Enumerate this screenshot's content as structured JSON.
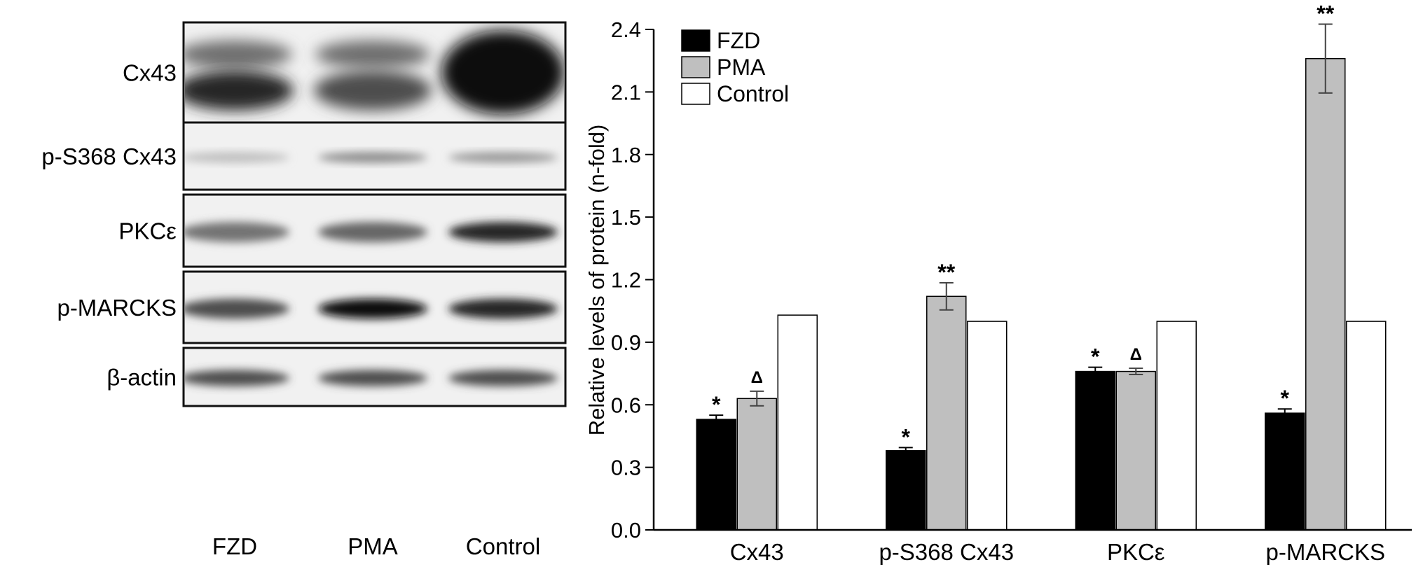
{
  "blot": {
    "rows": [
      {
        "label": "Cx43",
        "kind": "cx43",
        "intensity": [
          0.85,
          0.7,
          0.95
        ]
      },
      {
        "label": "p-S368 Cx43",
        "kind": "thin",
        "intensity": [
          0.25,
          0.45,
          0.4
        ]
      },
      {
        "label": "PKCε",
        "kind": "band",
        "intensity": [
          0.55,
          0.6,
          0.85
        ]
      },
      {
        "label": "p-MARCKS",
        "kind": "band",
        "intensity": [
          0.7,
          0.95,
          0.85
        ]
      },
      {
        "label": "β-actin",
        "kind": "band",
        "intensity": [
          0.7,
          0.7,
          0.7
        ]
      }
    ],
    "lanes": [
      "FZD",
      "PMA",
      "Control"
    ]
  },
  "chart_data": {
    "type": "bar",
    "categories": [
      "Cx43",
      "p-S368 Cx43",
      "PKCε",
      "p-MARCKS"
    ],
    "ylabel": "Relative levels of protein (n-fold)",
    "ylim": [
      0,
      2.4
    ],
    "yticks": [
      "0.0",
      "0.3",
      "0.6",
      "0.9",
      "1.2",
      "1.5",
      "1.8",
      "2.1",
      "2.4"
    ],
    "legend_position": "top-left",
    "series": [
      {
        "name": "FZD",
        "color": "#000000",
        "values": [
          0.53,
          0.38,
          0.76,
          0.56
        ],
        "errors": [
          0.02,
          0.015,
          0.02,
          0.02
        ],
        "marks": [
          "*",
          "*",
          "*",
          "*"
        ]
      },
      {
        "name": "PMA",
        "color": "#bfbfbf",
        "values": [
          0.63,
          1.12,
          0.76,
          2.26
        ],
        "errors": [
          0.035,
          0.065,
          0.015,
          0.165
        ],
        "marks": [
          "Δ",
          "**",
          "Δ",
          "**"
        ]
      },
      {
        "name": "Control",
        "color": "#ffffff",
        "values": [
          1.03,
          1.0,
          1.0,
          1.0
        ],
        "errors": [
          0,
          0,
          0,
          0
        ],
        "marks": [
          "",
          "",
          "",
          ""
        ]
      }
    ]
  }
}
